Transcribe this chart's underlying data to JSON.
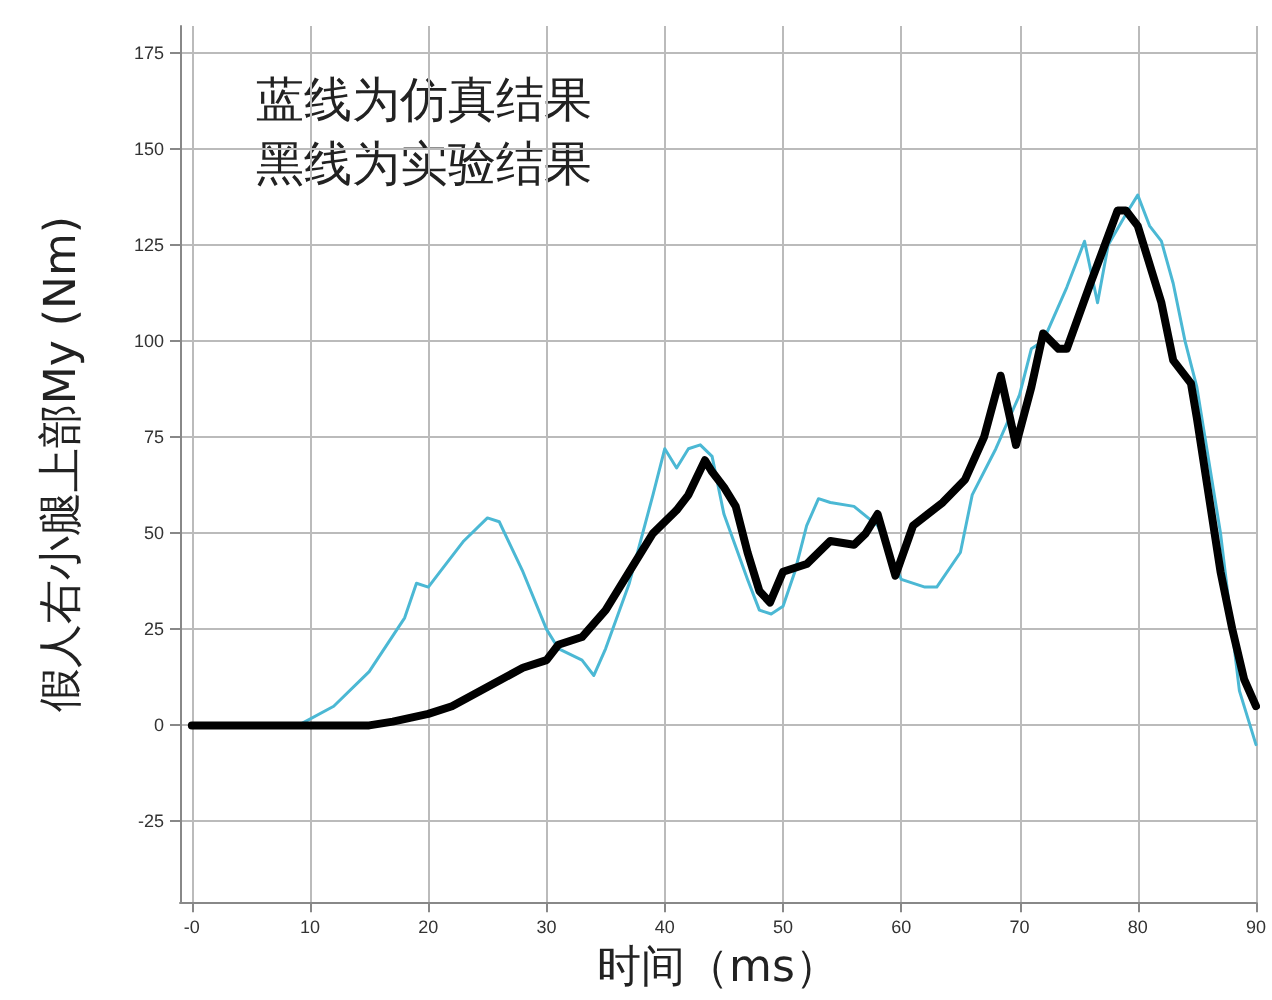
{
  "chart_data": {
    "type": "line",
    "xlabel": "时间（ms）",
    "ylabel": "假人右小腿上部My (Nm)",
    "annotations": [
      "蓝线为仿真结果",
      "黑线为实验结果"
    ],
    "xlim": [
      -1,
      90
    ],
    "xticks": [
      {
        "value": 0,
        "label": "-0"
      },
      10,
      20,
      30,
      40,
      50,
      60,
      70,
      80,
      90
    ],
    "ylim": [
      -46,
      182
    ],
    "yticks": [
      -25,
      0,
      25,
      50,
      75,
      100,
      125,
      150,
      175
    ],
    "grid": true,
    "line_style": "solid",
    "series": [
      {
        "color": "#4bb8d4",
        "x": [
          9,
          12,
          15,
          18,
          19,
          20,
          21,
          23,
          25,
          26,
          28,
          30,
          31,
          33,
          34,
          35,
          37,
          39,
          40,
          41,
          42,
          43,
          44,
          45,
          47,
          48,
          49,
          50,
          51,
          52,
          53,
          54,
          56,
          58,
          60,
          62,
          63,
          65,
          66,
          68,
          70,
          71,
          72,
          74,
          75.5,
          76.6,
          77.5,
          79,
          80,
          81,
          82,
          83,
          84,
          85,
          87,
          88.6,
          90
        ],
        "values": [
          0,
          5,
          14,
          28,
          37,
          36,
          40,
          48,
          54,
          53,
          40,
          25,
          20,
          17,
          13,
          20,
          37,
          60,
          72,
          67,
          72,
          73,
          70,
          55,
          38,
          30,
          29,
          31,
          40,
          52,
          59,
          58,
          57,
          52,
          38,
          36,
          36,
          45,
          60,
          72,
          86,
          98,
          100,
          114,
          126,
          110,
          125,
          133,
          138,
          130,
          126,
          115,
          100,
          88,
          50,
          9,
          -5
        ]
      },
      {
        "color": "#000000",
        "x": [
          0,
          5,
          10,
          15,
          17,
          20,
          22,
          25,
          28,
          30,
          31,
          33,
          35,
          37,
          39,
          41,
          42,
          43.4,
          44,
          45,
          46,
          47,
          48,
          48.9,
          50,
          52,
          54,
          56,
          57,
          58,
          59.5,
          61,
          63.5,
          65.4,
          67,
          68.4,
          69.7,
          71,
          72,
          73.3,
          74,
          76,
          78.3,
          79,
          80,
          82,
          83,
          84.5,
          85,
          86,
          87,
          88,
          89,
          90
        ],
        "values": [
          0,
          0,
          0,
          0,
          1,
          3,
          5,
          10,
          15,
          17,
          21,
          23,
          30,
          40,
          50,
          56,
          60,
          69,
          66,
          62,
          57,
          45,
          35,
          32,
          40,
          42,
          48,
          47,
          50,
          55,
          39,
          52,
          58,
          64,
          75,
          91,
          73,
          88,
          102,
          98,
          98,
          115,
          134,
          134,
          130,
          110,
          95,
          89,
          80,
          60,
          40,
          25,
          12,
          5
        ]
      }
    ]
  }
}
